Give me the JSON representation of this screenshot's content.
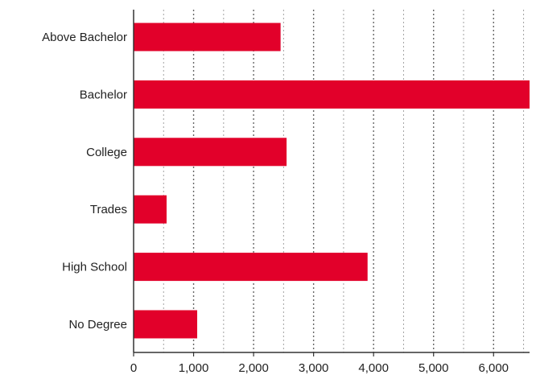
{
  "chart_data": {
    "type": "bar",
    "orientation": "horizontal",
    "title": "",
    "xlabel": "",
    "ylabel": "",
    "categories": [
      "Above Bachelor",
      "Bachelor",
      "College",
      "Trades",
      "High School",
      "No Degree"
    ],
    "values": [
      2450,
      6600,
      2550,
      550,
      3900,
      1060
    ],
    "xlim": [
      0,
      6600
    ],
    "xticks": [
      0,
      1000,
      2000,
      3000,
      4000,
      5000,
      6000
    ],
    "xtick_labels": [
      "0",
      "1,000",
      "2,000",
      "3,000",
      "4,000",
      "5,000",
      "6,000"
    ],
    "grid": "vertical dotted",
    "legend": "none",
    "colors": {
      "bar": "#e2002a",
      "axis": "#333333",
      "grid": "#555555"
    }
  }
}
